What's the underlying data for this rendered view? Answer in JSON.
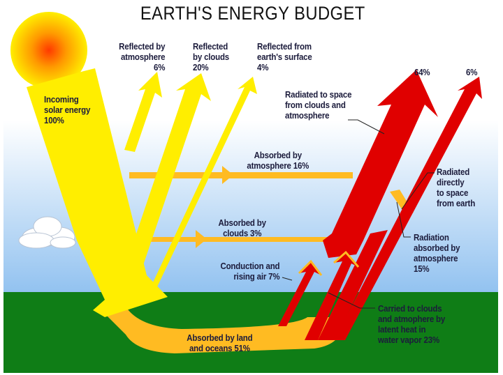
{
  "title": "EARTH'S ENERGY BUDGET",
  "labels": {
    "incoming": "Incoming\nsolar energy\n100%",
    "reflected_atmosphere": "Reflected by\natmosphere\n6%",
    "reflected_clouds": "Reflected\nby clouds\n20%",
    "reflected_surface": "Reflected from\nearth's surface\n4%",
    "radiated_clouds_pct": "64%",
    "radiated_earth_pct": "6%",
    "radiated_clouds": "Radiated to space\nfrom clouds and\natmosphere",
    "absorbed_atmosphere": "Absorbed by\natmosphere 16%",
    "radiated_directly": "Radiated\ndirectly\nto space\nfrom earth",
    "absorbed_clouds": "Absorbed by\nclouds 3%",
    "radiation_absorbed": "Radiation\nabsorbed by\natmosphere\n15%",
    "conduction": "Conduction and\nrising air 7%",
    "latent_heat": "Carried to clouds\nand atmophere by\nlatent heat in\nwater vapor 23%",
    "absorbed_land": "Absorbed by land\nand oceans 51%"
  },
  "colors": {
    "solar": "#ffee00",
    "absorbed": "#ffbb22",
    "infrared": "#e00000",
    "ground": "#0f7d16",
    "sky": "#99c6f2"
  }
}
